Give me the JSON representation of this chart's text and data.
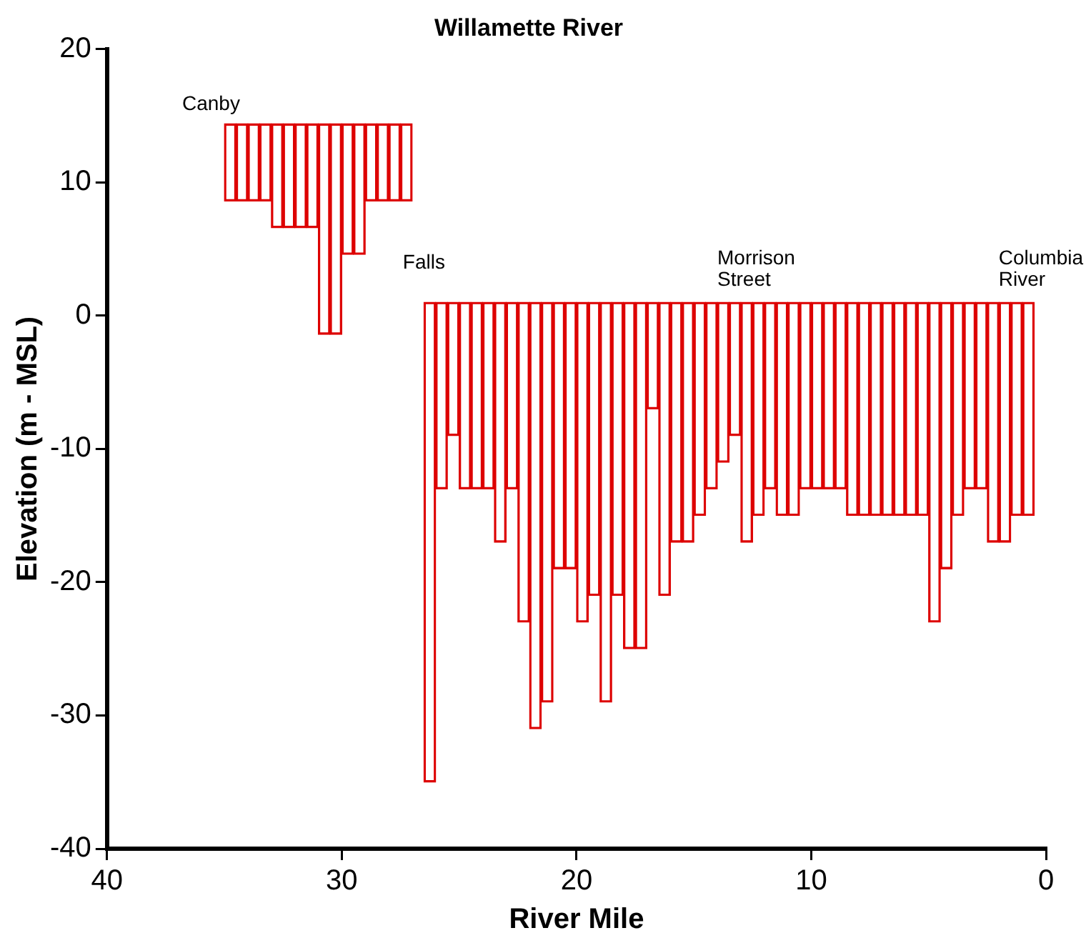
{
  "chart_data": {
    "type": "bar",
    "title": "Willamette River",
    "xlabel": "River Mile",
    "ylabel": "Elevation (m - MSL)",
    "x": [
      34.75,
      34.25,
      33.75,
      33.25,
      32.75,
      32.25,
      31.75,
      31.25,
      30.75,
      30.25,
      29.75,
      29.25,
      28.75,
      28.25,
      27.75,
      27.25,
      26.25,
      25.75,
      25.25,
      24.75,
      24.25,
      23.75,
      23.25,
      22.75,
      22.25,
      21.75,
      21.25,
      20.75,
      20.25,
      19.75,
      19.25,
      18.75,
      18.25,
      17.75,
      17.25,
      16.75,
      16.25,
      15.75,
      15.25,
      14.75,
      14.25,
      13.75,
      13.25,
      12.75,
      12.25,
      11.75,
      11.25,
      10.75,
      10.25,
      9.75,
      9.25,
      8.75,
      8.25,
      7.75,
      7.25,
      6.75,
      6.25,
      5.75,
      5.25,
      4.75,
      4.25,
      3.75,
      3.25,
      2.75,
      2.25,
      1.75,
      1.25,
      0.75
    ],
    "base": [
      8.6,
      8.6,
      8.6,
      8.6,
      6.6,
      6.6,
      6.6,
      6.6,
      -1.4,
      -1.4,
      4.6,
      4.6,
      8.6,
      8.6,
      8.6,
      8.6,
      -35,
      -13,
      -9,
      -13,
      -13,
      -13,
      -17,
      -13,
      -23,
      -31,
      -29,
      -19,
      -19,
      -23,
      -21,
      -29,
      -21,
      -25,
      -25,
      -7,
      -21,
      -17,
      -17,
      -15,
      -13,
      -11,
      -9,
      -17,
      -15,
      -13,
      -15,
      -15,
      -13,
      -13,
      -13,
      -13,
      -15,
      -15,
      -15,
      -15,
      -15,
      -15,
      -15,
      -23,
      -19,
      -15,
      -13,
      -13,
      -17,
      -17,
      -15,
      -15
    ],
    "values": [
      5.8,
      5.8,
      5.8,
      5.8,
      7.8,
      7.8,
      7.8,
      7.8,
      15.8,
      15.8,
      9.8,
      9.8,
      5.8,
      5.8,
      5.8,
      5.8,
      36,
      14,
      10,
      14,
      14,
      14,
      18,
      14,
      24,
      32,
      30,
      20,
      20,
      24,
      22,
      30,
      22,
      26,
      26,
      8,
      22,
      18,
      18,
      16,
      14,
      12,
      10,
      18,
      16,
      14,
      16,
      16,
      14,
      14,
      14,
      14,
      16,
      16,
      16,
      16,
      16,
      16,
      16,
      24,
      20,
      16,
      14,
      14,
      18,
      18,
      16,
      16
    ],
    "color": "#dd0000",
    "xlim": [
      40,
      0
    ],
    "xticks": [
      40,
      30,
      20,
      10,
      0
    ],
    "ylim": [
      -40,
      20
    ],
    "yticks": [
      -40,
      -30,
      -20,
      -10,
      0,
      10,
      20
    ],
    "annotations": [
      "Canby",
      "Falls",
      "Morrison\nStreet",
      "Columbia\nRiver"
    ]
  }
}
